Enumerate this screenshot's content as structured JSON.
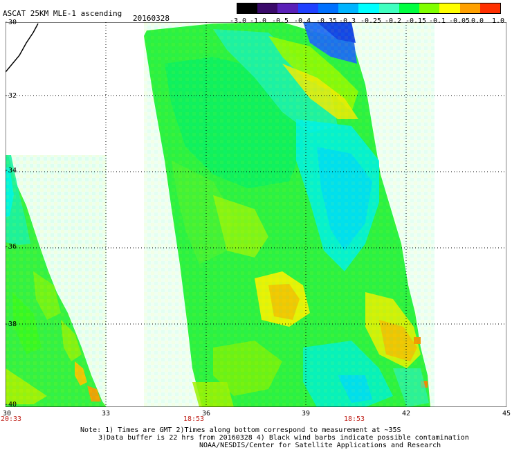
{
  "header": {
    "title": "ASCAT 25KM MLE-1 ascending",
    "date": "20160328"
  },
  "colorbar": {
    "labels": [
      "-3.0",
      "-1.0",
      "-0.5",
      "-0.4",
      "-0.35",
      "-0.3",
      "-0.25",
      "-0.2",
      "-0.15",
      "-0.1",
      "-0.05",
      "0.0",
      "1.0"
    ],
    "colors": [
      "#000000",
      "#3a0a6a",
      "#5a20b8",
      "#2040ff",
      "#0070ff",
      "#00b4ff",
      "#00ffff",
      "#40ffc0",
      "#00ff40",
      "#80ff00",
      "#ffff00",
      "#ffa000",
      "#ff3000"
    ]
  },
  "map": {
    "lat_labels": [
      "-30",
      "-32",
      "-34",
      "-36",
      "-38",
      "-40"
    ],
    "lon_labels": [
      "30",
      "33",
      "36",
      "39",
      "42",
      "45"
    ],
    "times": [
      "20:33",
      "18:53",
      "18:53"
    ]
  },
  "notes": {
    "line1": "Note: 1) Times are GMT 2)Times along bottom correspond to measurement at ~35S",
    "line2": "3)Data buffer is 22 hrs from 20160328 4) Black wind barbs indicate possible contamination",
    "line3": "NOAA/NESDIS/Center for Satellite Applications and Research"
  }
}
